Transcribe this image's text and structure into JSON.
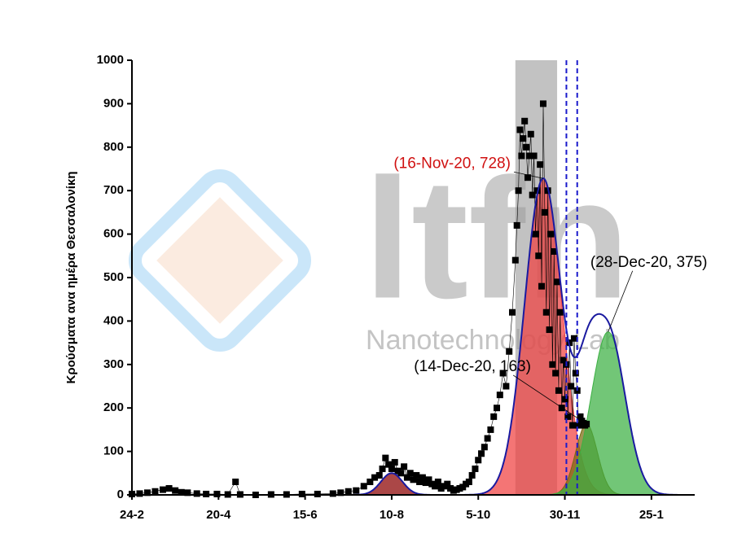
{
  "chart_data": {
    "type": "scatter",
    "y_label": "Κρούσματα ανα ημέρα Θεσσαλονίκη",
    "xlim": [
      0,
      364
    ],
    "ylim": [
      0,
      1000
    ],
    "xticks": [
      {
        "value": 0,
        "label": "24-2"
      },
      {
        "value": 56,
        "label": "20-4"
      },
      {
        "value": 112,
        "label": "15-6"
      },
      {
        "value": 168,
        "label": "10-8"
      },
      {
        "value": 224,
        "label": "5-10"
      },
      {
        "value": 280,
        "label": "30-11"
      },
      {
        "value": 336,
        "label": "25-1"
      }
    ],
    "yticks": [
      0,
      100,
      200,
      300,
      400,
      500,
      600,
      700,
      800,
      900,
      1000
    ],
    "watermark": {
      "logo": "ltfn",
      "text": "Nanotechnology Lab"
    },
    "shaded_x_range": [
      248,
      275
    ],
    "dashed_lines_x": [
      281,
      288
    ],
    "points": {
      "color": "#000000",
      "x": [
        0,
        5,
        10,
        15,
        20,
        24,
        28,
        32,
        36,
        42,
        48,
        55,
        62,
        67,
        70,
        80,
        90,
        100,
        110,
        120,
        130,
        135,
        140,
        145,
        150,
        154,
        157,
        160,
        162,
        164,
        166,
        168,
        170,
        172,
        174,
        176,
        178,
        180,
        182,
        184,
        186,
        188,
        190,
        192,
        194,
        196,
        198,
        200,
        202,
        204,
        206,
        208,
        210,
        212,
        214,
        216,
        218,
        220,
        222,
        224,
        226,
        228,
        230,
        232,
        234,
        236,
        238,
        240,
        242,
        244,
        246,
        248,
        249,
        250,
        251,
        252,
        253,
        254,
        255,
        256,
        257,
        258,
        259,
        260,
        261,
        262,
        263,
        264,
        265,
        266,
        267,
        268,
        269,
        270,
        271,
        272,
        273,
        274,
        275,
        276,
        277,
        278,
        279,
        280,
        281,
        282,
        283,
        284,
        285,
        286,
        287,
        288,
        289,
        290,
        291,
        292,
        293,
        294
      ],
      "y": [
        2,
        3,
        5,
        8,
        12,
        15,
        10,
        6,
        5,
        3,
        2,
        2,
        1,
        30,
        1,
        0,
        1,
        1,
        2,
        2,
        3,
        5,
        8,
        10,
        20,
        30,
        40,
        45,
        60,
        85,
        70,
        60,
        75,
        55,
        50,
        65,
        40,
        50,
        35,
        45,
        30,
        40,
        28,
        35,
        25,
        20,
        30,
        15,
        20,
        25,
        15,
        10,
        12,
        15,
        18,
        25,
        30,
        45,
        60,
        80,
        95,
        110,
        130,
        150,
        180,
        200,
        230,
        280,
        250,
        330,
        420,
        540,
        620,
        700,
        840,
        780,
        820,
        860,
        800,
        730,
        780,
        830,
        690,
        780,
        600,
        700,
        550,
        760,
        480,
        900,
        650,
        420,
        700,
        380,
        600,
        300,
        560,
        280,
        490,
        240,
        420,
        200,
        310,
        220,
        300,
        180,
        350,
        250,
        160,
        360,
        280,
        240,
        160,
        180,
        170,
        165,
        160,
        163
      ]
    },
    "fits": [
      {
        "center": 168,
        "amplitude": 50,
        "sigma": 7,
        "color": "#8b0000"
      },
      {
        "center": 266,
        "amplitude": 728,
        "sigma": 12,
        "color": "#f04040"
      },
      {
        "center": 294,
        "amplitude": 163,
        "sigma": 7,
        "color": "#7a6a10"
      },
      {
        "center": 308,
        "amplitude": 375,
        "sigma": 11,
        "color": "#3cb043"
      }
    ],
    "envelope_color": "#1a1aa0",
    "annotations": [
      {
        "text": "(16-Nov-20, 728)",
        "x": 266,
        "y": 728,
        "color": "#d01010"
      },
      {
        "text": "(28-Dec-20, 375)",
        "x": 308,
        "y": 375,
        "color": "#000000"
      },
      {
        "text": "(14-Dec-20, 163)",
        "x": 294,
        "y": 163,
        "color": "#000000"
      }
    ]
  }
}
